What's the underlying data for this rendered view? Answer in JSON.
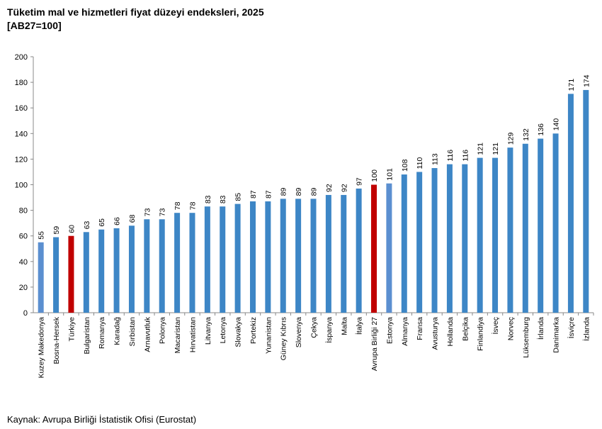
{
  "title_line1": "Tüketim mal ve hizmetleri fiyat düzeyi endeksleri, 2025",
  "title_line2": "[AB27=100]",
  "source": "Kaynak: Avrupa Birliği İstatistik Ofisi (Eurostat)",
  "chart_data": {
    "type": "bar",
    "title": "Tüketim mal ve hizmetleri fiyat düzeyi endeksleri, 2025",
    "subtitle": "[AB27=100]",
    "categories": [
      "Kuzey Makedonya",
      "Bosna-Hersek",
      "Türkiye",
      "Bulgaristan",
      "Romanya",
      "Karadağ",
      "Sırbistan",
      "Arnavutluk",
      "Polonya",
      "Macaristan",
      "Hırvatistan",
      "Litvanya",
      "Letonya",
      "Slovakya",
      "Portekiz",
      "Yunanistan",
      "Güney Kıbrıs",
      "Slovenya",
      "Çekya",
      "İspanya",
      "Malta",
      "İtalya",
      "Avrupa Birliği 27",
      "Estonya",
      "Almanya",
      "Fransa",
      "Avusturya",
      "Hollanda",
      "Belçika",
      "Finlandiya",
      "İsveç",
      "Norveç",
      "Lüksemburg",
      "İrlanda",
      "Danimarka",
      "İsviçre",
      "İzlanda"
    ],
    "values": [
      55,
      59,
      60,
      63,
      65,
      66,
      68,
      73,
      73,
      78,
      78,
      83,
      83,
      85,
      87,
      87,
      89,
      89,
      89,
      92,
      92,
      97,
      100,
      101,
      108,
      110,
      113,
      116,
      116,
      121,
      121,
      129,
      132,
      136,
      140,
      171,
      174
    ],
    "bar_colors": [
      "#5b8fd0",
      "#3d86c6",
      "#c00000",
      "#3d86c6",
      "#3d86c6",
      "#3d86c6",
      "#3d86c6",
      "#3d86c6",
      "#3d86c6",
      "#3d86c6",
      "#3d86c6",
      "#3d86c6",
      "#3d86c6",
      "#3d86c6",
      "#3d86c6",
      "#3d86c6",
      "#3d86c6",
      "#3d86c6",
      "#3d86c6",
      "#3d86c6",
      "#3d86c6",
      "#3d86c6",
      "#c00000",
      "#5b8fd0",
      "#3d86c6",
      "#3d86c6",
      "#3d86c6",
      "#3d86c6",
      "#3d86c6",
      "#3d86c6",
      "#3d86c6",
      "#3d86c6",
      "#3d86c6",
      "#3d86c6",
      "#3d86c6",
      "#3d86c6",
      "#3d86c6"
    ],
    "ylim": [
      0,
      200
    ],
    "yticks": [
      0,
      20,
      40,
      60,
      80,
      100,
      120,
      140,
      160,
      180,
      200
    ],
    "xlabel": "",
    "ylabel": "",
    "grid": false,
    "legend": "none"
  }
}
